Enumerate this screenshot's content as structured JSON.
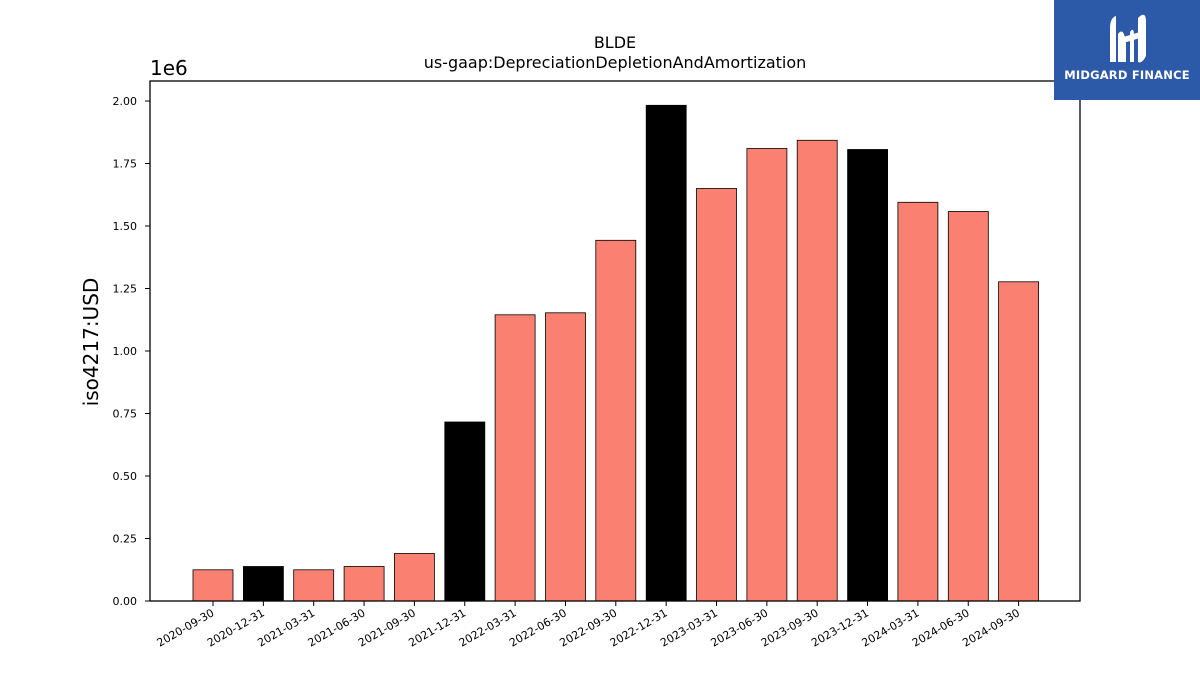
{
  "chart_data": {
    "type": "bar",
    "title": "BLDE",
    "subtitle": "us-gaap:DepreciationDepletionAndAmortization",
    "ylabel": "iso4217:USD",
    "xlabel": "",
    "y_offset_label": "1e6",
    "y_scale": 1000000,
    "ylim": [
      0,
      2.08
    ],
    "yticks": [
      "0.00",
      "0.25",
      "0.50",
      "0.75",
      "1.00",
      "1.25",
      "1.50",
      "1.75",
      "2.00"
    ],
    "categories": [
      "2020-09-30",
      "2020-12-31",
      "2021-03-31",
      "2021-06-30",
      "2021-09-30",
      "2021-12-31",
      "2022-03-31",
      "2022-06-30",
      "2022-09-30",
      "2022-12-31",
      "2023-03-31",
      "2023-06-30",
      "2023-09-30",
      "2023-12-31",
      "2024-03-31",
      "2024-06-30",
      "2024-09-30"
    ],
    "values": [
      125000,
      138000,
      125000,
      138000,
      190000,
      716000,
      1145000,
      1153000,
      1443000,
      1983000,
      1650000,
      1810000,
      1843000,
      1806000,
      1595000,
      1558000,
      1277000
    ],
    "highlight": [
      false,
      true,
      false,
      false,
      false,
      true,
      false,
      false,
      false,
      true,
      false,
      false,
      false,
      true,
      false,
      false,
      false
    ],
    "colors": {
      "bar": "#fa8072",
      "highlight": "#000000",
      "edge": "#000000"
    },
    "grid": false,
    "legend": "none"
  },
  "logo": {
    "text": "MIDGARD FINANCE",
    "icon": "midgard-logo-icon",
    "background": "#2d5aa8"
  }
}
